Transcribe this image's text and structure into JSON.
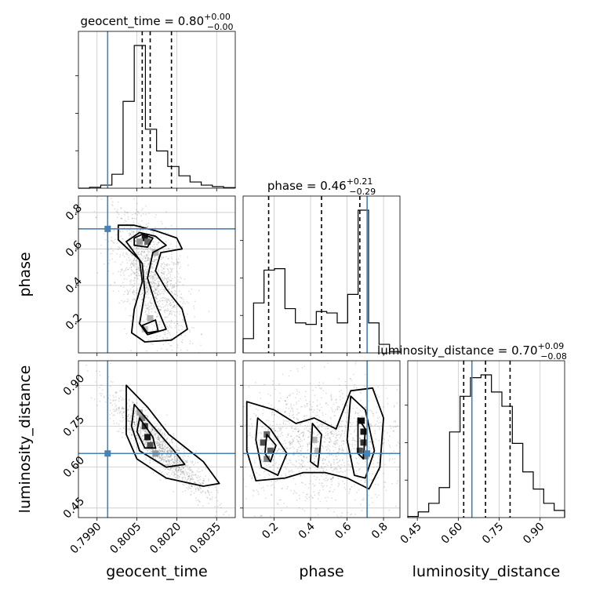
{
  "chart_data": {
    "type": "corner",
    "parameters": [
      "geocent_time",
      "phase",
      "luminosity_distance"
    ],
    "axis_labels": [
      "geocent_time",
      "phase",
      "luminosity_distance"
    ],
    "ranges": {
      "geocent_time": [
        0.7983,
        0.8042
      ],
      "phase": [
        0.03,
        0.89
      ],
      "luminosity_distance": [
        0.415,
        0.99
      ]
    },
    "ticks": {
      "geocent_time": [
        "0.7990",
        "0.8005",
        "0.8020",
        "0.8035"
      ],
      "phase": [
        "0.2",
        "0.4",
        "0.6",
        "0.8"
      ],
      "luminosity_distance": [
        "0.45",
        "0.60",
        "0.75",
        "0.90"
      ]
    },
    "truths": {
      "geocent_time": 0.7994,
      "phase": 0.71,
      "luminosity_distance": 0.65
    },
    "truth_color": "#4682b4",
    "titles": [
      {
        "param": "geocent_time",
        "label": "geocent_time = 0.80",
        "median": 0.801,
        "quantiles": [
          0.8007,
          0.8018
        ],
        "plus": "+0.00",
        "minus": "−0.00"
      },
      {
        "param": "phase",
        "label": "phase = 0.46",
        "median": 0.46,
        "quantiles": [
          0.17,
          0.67
        ],
        "plus": "+0.21",
        "minus": "−0.29"
      },
      {
        "param": "luminosity_distance",
        "label": "luminosity_distance = 0.70",
        "median": 0.7,
        "quantiles": [
          0.62,
          0.79
        ],
        "plus": "+0.09",
        "minus": "−0.08"
      }
    ],
    "histograms": {
      "geocent_time": {
        "bins": [
          0.7983,
          0.79872,
          0.79914,
          0.79956,
          0.79998,
          0.8004,
          0.80082,
          0.80124,
          0.80166,
          0.80208,
          0.8025,
          0.80292,
          0.80334,
          0.80376,
          0.8042
        ],
        "counts": [
          0,
          0.3,
          1.0,
          4.5,
          28,
          46,
          19,
          12,
          7,
          4,
          2,
          1,
          0.5,
          0.2
        ]
      },
      "phase": {
        "bins": [
          0.03,
          0.0873,
          0.1447,
          0.202,
          0.2593,
          0.3167,
          0.374,
          0.4313,
          0.4887,
          0.546,
          0.6033,
          0.6607,
          0.718,
          0.7753,
          0.8327,
          0.89
        ],
        "counts": [
          1.0,
          3.5,
          5.8,
          5.9,
          3.1,
          2.1,
          2.0,
          2.9,
          2.8,
          2.1,
          4.1,
          10.0,
          2.1,
          0.6,
          0.1
        ]
      },
      "luminosity_distance": {
        "bins": [
          0.415,
          0.4533,
          0.4917,
          0.53,
          0.5683,
          0.6067,
          0.645,
          0.6833,
          0.7217,
          0.76,
          0.7983,
          0.8367,
          0.875,
          0.9133,
          0.9517,
          0.99
        ],
        "counts": [
          0.08,
          0.4,
          1.0,
          2.1,
          6.0,
          8.5,
          9.8,
          10.0,
          8.8,
          7.8,
          5.2,
          3.2,
          2.0,
          1.0,
          0.5
        ]
      }
    },
    "contours": {
      "phase_vs_geocent_time": [
        [
          [
            0.8004,
            0.73
          ],
          [
            0.8012,
            0.7
          ],
          [
            0.802,
            0.66
          ],
          [
            0.8022,
            0.6
          ],
          [
            0.8014,
            0.58
          ],
          [
            0.8012,
            0.48
          ],
          [
            0.8016,
            0.38
          ],
          [
            0.8022,
            0.27
          ],
          [
            0.8024,
            0.16
          ],
          [
            0.8018,
            0.1
          ],
          [
            0.8008,
            0.09
          ],
          [
            0.8003,
            0.14
          ],
          [
            0.8004,
            0.27
          ],
          [
            0.8007,
            0.42
          ],
          [
            0.8006,
            0.54
          ],
          [
            0.7998,
            0.65
          ],
          [
            0.7998,
            0.73
          ],
          [
            0.8004,
            0.73
          ]
        ],
        [
          [
            0.8006,
            0.69
          ],
          [
            0.8012,
            0.67
          ],
          [
            0.8016,
            0.62
          ],
          [
            0.8011,
            0.58
          ],
          [
            0.8009,
            0.44
          ],
          [
            0.8012,
            0.3
          ],
          [
            0.8016,
            0.16
          ],
          [
            0.8009,
            0.13
          ],
          [
            0.8006,
            0.19
          ],
          [
            0.8008,
            0.36
          ],
          [
            0.8007,
            0.52
          ],
          [
            0.8001,
            0.64
          ],
          [
            0.8006,
            0.69
          ]
        ],
        [
          [
            0.8007,
            0.68
          ],
          [
            0.8011,
            0.66
          ],
          [
            0.8009,
            0.61
          ],
          [
            0.8004,
            0.62
          ],
          [
            0.8004,
            0.66
          ],
          [
            0.8007,
            0.68
          ]
        ],
        [
          [
            0.8007,
            0.18
          ],
          [
            0.8012,
            0.21
          ],
          [
            0.8013,
            0.15
          ],
          [
            0.8009,
            0.14
          ],
          [
            0.8007,
            0.18
          ]
        ]
      ],
      "luminosity_distance_vs_geocent_time": [
        [
          [
            0.8001,
            0.9
          ],
          [
            0.8009,
            0.82
          ],
          [
            0.8017,
            0.72
          ],
          [
            0.803,
            0.62
          ],
          [
            0.8036,
            0.54
          ],
          [
            0.803,
            0.53
          ],
          [
            0.8016,
            0.56
          ],
          [
            0.8005,
            0.63
          ],
          [
            0.8001,
            0.72
          ],
          [
            0.8001,
            0.85
          ],
          [
            0.8001,
            0.9
          ]
        ],
        [
          [
            0.8004,
            0.83
          ],
          [
            0.8011,
            0.75
          ],
          [
            0.8019,
            0.66
          ],
          [
            0.8023,
            0.61
          ],
          [
            0.8016,
            0.6
          ],
          [
            0.8006,
            0.66
          ],
          [
            0.8003,
            0.75
          ],
          [
            0.8004,
            0.83
          ]
        ],
        [
          [
            0.8006,
            0.78
          ],
          [
            0.8011,
            0.71
          ],
          [
            0.8012,
            0.67
          ],
          [
            0.8008,
            0.67
          ],
          [
            0.8005,
            0.73
          ],
          [
            0.8006,
            0.78
          ]
        ]
      ],
      "luminosity_distance_vs_phase": [
        [
          [
            0.05,
            0.84
          ],
          [
            0.2,
            0.81
          ],
          [
            0.32,
            0.76
          ],
          [
            0.42,
            0.78
          ],
          [
            0.54,
            0.74
          ],
          [
            0.62,
            0.88
          ],
          [
            0.74,
            0.89
          ],
          [
            0.8,
            0.78
          ],
          [
            0.78,
            0.6
          ],
          [
            0.72,
            0.52
          ],
          [
            0.6,
            0.56
          ],
          [
            0.48,
            0.58
          ],
          [
            0.36,
            0.58
          ],
          [
            0.26,
            0.56
          ],
          [
            0.1,
            0.55
          ],
          [
            0.05,
            0.66
          ],
          [
            0.05,
            0.84
          ]
        ],
        [
          [
            0.11,
            0.78
          ],
          [
            0.18,
            0.74
          ],
          [
            0.27,
            0.65
          ],
          [
            0.22,
            0.57
          ],
          [
            0.13,
            0.6
          ],
          [
            0.1,
            0.7
          ],
          [
            0.11,
            0.78
          ]
        ],
        [
          [
            0.62,
            0.86
          ],
          [
            0.7,
            0.81
          ],
          [
            0.75,
            0.66
          ],
          [
            0.7,
            0.56
          ],
          [
            0.64,
            0.57
          ],
          [
            0.6,
            0.7
          ],
          [
            0.62,
            0.86
          ]
        ],
        [
          [
            0.41,
            0.76
          ],
          [
            0.46,
            0.72
          ],
          [
            0.44,
            0.6
          ],
          [
            0.4,
            0.62
          ],
          [
            0.41,
            0.76
          ]
        ],
        [
          [
            0.16,
            0.72
          ],
          [
            0.21,
            0.68
          ],
          [
            0.18,
            0.62
          ],
          [
            0.15,
            0.65
          ],
          [
            0.16,
            0.72
          ]
        ],
        [
          [
            0.66,
            0.78
          ],
          [
            0.7,
            0.74
          ],
          [
            0.69,
            0.63
          ],
          [
            0.66,
            0.65
          ],
          [
            0.66,
            0.78
          ]
        ]
      ]
    },
    "density_cells": {
      "phase_vs_geocent_time": [
        [
          0.8008,
          0.66,
          0.9
        ],
        [
          0.8009,
          0.64,
          0.6
        ],
        [
          0.8006,
          0.64,
          0.4
        ],
        [
          0.801,
          0.22,
          0.3
        ],
        [
          0.8008,
          0.16,
          0.25
        ],
        [
          0.8012,
          0.58,
          0.3
        ]
      ],
      "luminosity_distance_vs_geocent_time": [
        [
          0.8008,
          0.75,
          0.8
        ],
        [
          0.8009,
          0.71,
          0.9
        ],
        [
          0.801,
          0.68,
          0.7
        ],
        [
          0.8007,
          0.78,
          0.5
        ],
        [
          0.8012,
          0.65,
          0.4
        ],
        [
          0.8006,
          0.8,
          0.35
        ]
      ],
      "luminosity_distance_vs_phase": [
        [
          0.16,
          0.72,
          0.6
        ],
        [
          0.14,
          0.69,
          0.7
        ],
        [
          0.18,
          0.66,
          0.65
        ],
        [
          0.16,
          0.63,
          0.5
        ],
        [
          0.68,
          0.77,
          0.95
        ],
        [
          0.69,
          0.73,
          0.9
        ],
        [
          0.69,
          0.69,
          0.8
        ],
        [
          0.67,
          0.66,
          0.7
        ],
        [
          0.7,
          0.64,
          0.5
        ],
        [
          0.42,
          0.7,
          0.3
        ],
        [
          0.44,
          0.66,
          0.3
        ]
      ]
    }
  }
}
